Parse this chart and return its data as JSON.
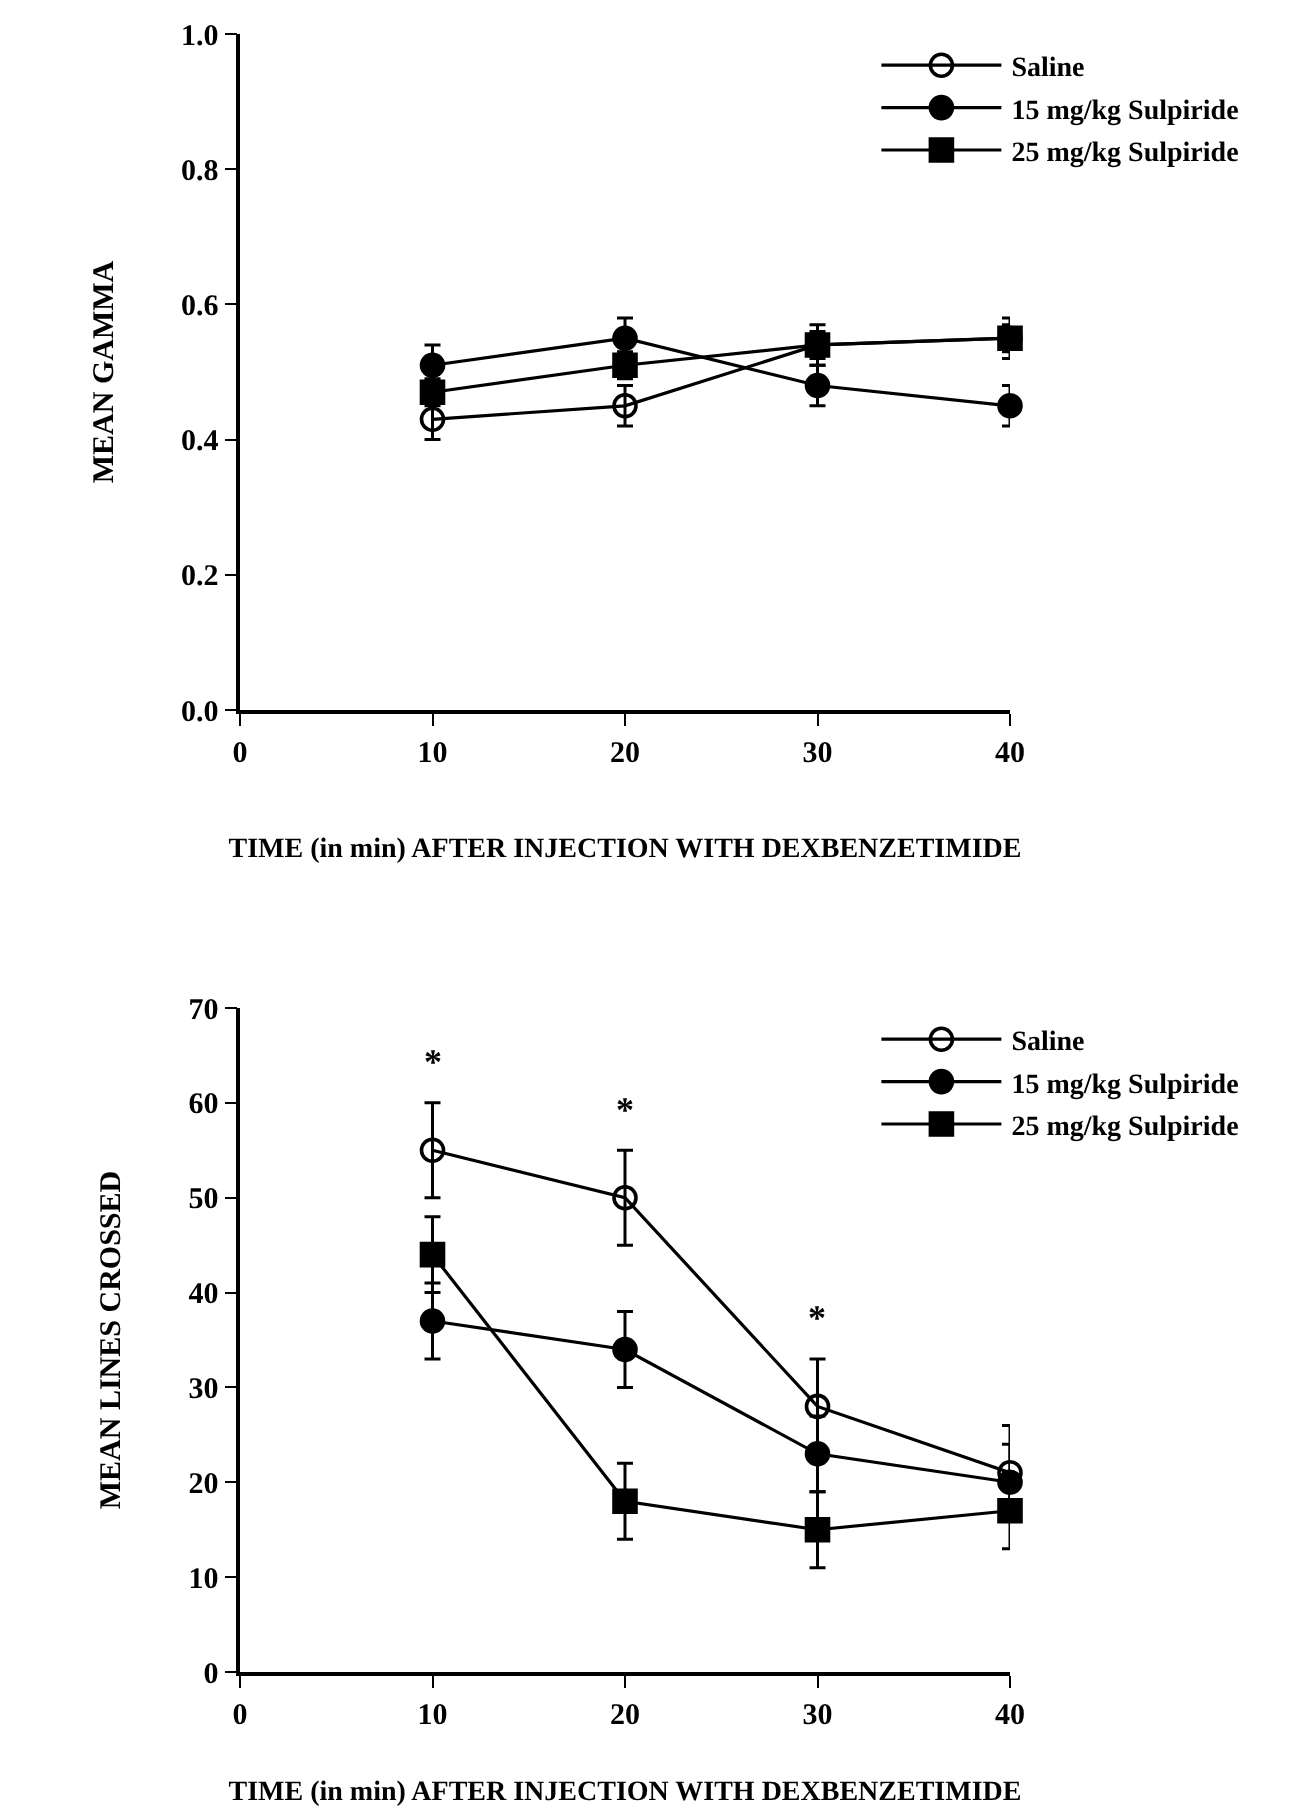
{
  "chart_data": [
    {
      "type": "line",
      "xlabel": "TIME (in min) AFTER INJECTION WITH DEXBENZETIMIDE",
      "ylabel": "MEAN GAMMA",
      "x": [
        10,
        20,
        30,
        40
      ],
      "xlim": [
        0,
        40
      ],
      "xticks": [
        0,
        10,
        20,
        30,
        40
      ],
      "ylim": [
        0,
        1
      ],
      "yticks": [
        {
          "value": 0,
          "label": "0.0"
        },
        {
          "value": 0.2,
          "label": "0.2"
        },
        {
          "value": 0.4,
          "label": "0.4"
        },
        {
          "value": 0.6,
          "label": "0.6"
        },
        {
          "value": 0.8,
          "label": "0.8"
        },
        {
          "value": 1,
          "label": "1.0"
        }
      ],
      "grid": false,
      "legend": "top right",
      "line_style": "solid",
      "series": [
        {
          "name": "Saline",
          "color": "#000000",
          "marker": "circle-open",
          "values": [
            0.43,
            0.45,
            0.54,
            0.55
          ],
          "errors": [
            0.03,
            0.03,
            0.03,
            0.03
          ]
        },
        {
          "name": "15 mg/kg Sulpiride",
          "color": "#000000",
          "marker": "circle",
          "values": [
            0.51,
            0.55,
            0.48,
            0.45
          ],
          "errors": [
            0.03,
            0.03,
            0.03,
            0.03
          ]
        },
        {
          "name": "25 mg/kg Sulpiride",
          "color": "#000000",
          "marker": "square",
          "values": [
            0.47,
            0.51,
            0.54,
            0.55
          ],
          "errors": [
            0.02,
            0.02,
            0.02,
            0.02
          ]
        }
      ]
    },
    {
      "type": "line",
      "xlabel": "TIME (in min) AFTER INJECTION WITH DEXBENZETIMIDE",
      "ylabel": "MEAN LINES CROSSED",
      "x": [
        10,
        20,
        30,
        40
      ],
      "xlim": [
        0,
        40
      ],
      "xticks": [
        0,
        10,
        20,
        30,
        40
      ],
      "ylim": [
        0,
        70
      ],
      "yticks": [
        0,
        10,
        20,
        30,
        40,
        50,
        60,
        70
      ],
      "grid": false,
      "legend": "top right",
      "line_style": "solid",
      "annotations": [
        "*",
        "*",
        "*"
      ],
      "series": [
        {
          "name": "Saline",
          "color": "#000000",
          "marker": "circle-open",
          "values": [
            55,
            50,
            28,
            21
          ],
          "errors": [
            5,
            5,
            5,
            5
          ]
        },
        {
          "name": "15 mg/kg Sulpiride",
          "color": "#000000",
          "marker": "circle",
          "values": [
            37,
            34,
            23,
            20
          ],
          "errors": [
            4,
            4,
            4,
            4
          ]
        },
        {
          "name": "25 mg/kg Sulpiride",
          "color": "#000000",
          "marker": "square",
          "values": [
            44,
            18,
            15,
            17
          ],
          "errors": [
            4,
            4,
            4,
            4
          ]
        }
      ]
    }
  ]
}
